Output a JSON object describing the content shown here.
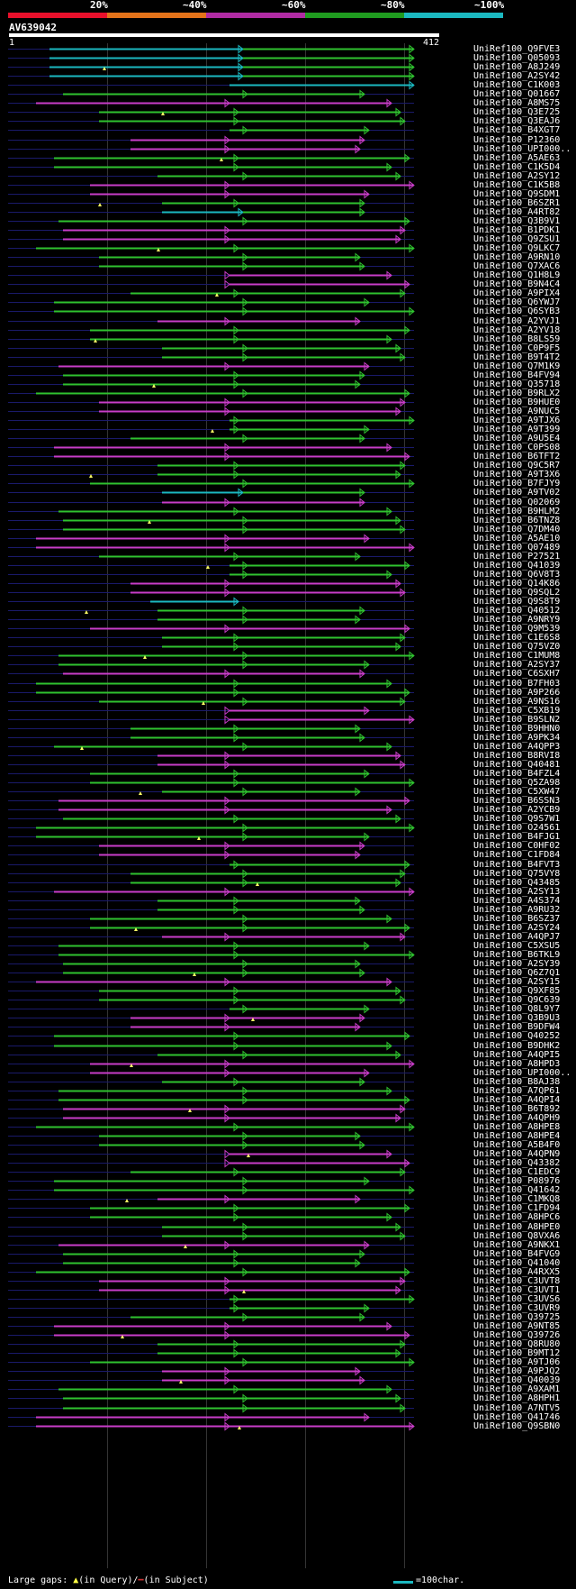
{
  "header": {
    "percent_labels": [
      "20%",
      "~40%",
      "~60%",
      "~80%",
      "~100%"
    ],
    "query_name": "AV639042",
    "query_start": "1",
    "query_end": "412",
    "colors": {
      "band1": "#e8102b",
      "band2": "#e4731a",
      "band3": "#b02ba3",
      "band4": "#1f9b1f",
      "band5": "#1bb8c0"
    }
  },
  "legend": {
    "large_gaps_label": "Large gaps: ",
    "query_marker": "▲",
    "query_text": "(in Query)/",
    "subject_text": "(in Subject)",
    "scale_label": "=100char."
  },
  "hits": [
    "UniRef100_Q9FVE3",
    "UniRef100_Q05093",
    "UniRef100_A8J249",
    "UniRef100_A2SY42",
    "UniRef100_C1K003",
    "UniRef100_Q01667",
    "UniRef100_A8MS75",
    "UniRef100_Q3E725",
    "UniRef100_Q3EAJ6",
    "UniRef100_B4XGT7",
    "UniRef100_P12360",
    "UniRef100_UPI000..",
    "UniRef100_A5AE63",
    "UniRef100_C1K5D4",
    "UniRef100_A2SY12",
    "UniRef100_C1K5B8",
    "UniRef100_Q9SDM1",
    "UniRef100_B6SZR1",
    "UniRef100_A4RT82",
    "UniRef100_Q3B9V1",
    "UniRef100_B1PDK1",
    "UniRef100_Q9ZSU1",
    "UniRef100_Q9LKC7",
    "UniRef100_A9RN10",
    "UniRef100_Q7XAC6",
    "UniRef100_Q1H8L9",
    "UniRef100_B9N4C4",
    "UniRef100_A9PIX4",
    "UniRef100_Q6YWJ7",
    "UniRef100_Q6SYB3",
    "UniRef100_A2YVJ1",
    "UniRef100_A2YV18",
    "UniRef100_B8LS59",
    "UniRef100_C0P9F5",
    "UniRef100_B9T4T2",
    "UniRef100_Q7M1K9",
    "UniRef100_B4FV94",
    "UniRef100_Q35718",
    "UniRef100_B9RLX2",
    "UniRef100_B9HUE0",
    "UniRef100_A9NUC5",
    "UniRef100_A9TJX6",
    "UniRef100_A9T399",
    "UniRef100_A9U5E4",
    "UniRef100_C0PS08",
    "UniRef100_B6TFT2",
    "UniRef100_Q9C5R7",
    "UniRef100_A9T3X6",
    "UniRef100_B7FJY9",
    "UniRef100_A9TV02",
    "UniRef100_Q02069",
    "UniRef100_B9HLM2",
    "UniRef100_B6TNZ8",
    "UniRef100_Q7DM40",
    "UniRef100_A5AE10",
    "UniRef100_Q07489",
    "UniRef100_P27521",
    "UniRef100_Q41039",
    "UniRef100_Q6V8T3",
    "UniRef100_Q14K86",
    "UniRef100_Q9SQL2",
    "UniRef100_Q9S8T9",
    "UniRef100_Q40512",
    "UniRef100_A9NRY9",
    "UniRef100_Q9M539",
    "UniRef100_C1E6S8",
    "UniRef100_Q75VZ0",
    "UniRef100_C1MUM8",
    "UniRef100_A2SY37",
    "UniRef100_C6SXH7",
    "UniRef100_B7FH03",
    "UniRef100_A9P266",
    "UniRef100_A9NS16",
    "UniRef100_C5XB19",
    "UniRef100_B9SLN2",
    "UniRef100_B9HHN0",
    "UniRef100_A9PK34",
    "UniRef100_A4QPP3",
    "UniRef100_B8RVI8",
    "UniRef100_Q40481",
    "UniRef100_B4FZL4",
    "UniRef100_Q5ZA98",
    "UniRef100_C5XW47",
    "UniRef100_B6SSN3",
    "UniRef100_A2YCB9",
    "UniRef100_Q9S7W1",
    "UniRef100_O24561",
    "UniRef100_B4FJG1",
    "UniRef100_C0HF02",
    "UniRef100_C1FD84",
    "UniRef100_B4FVT3",
    "UniRef100_Q75VY8",
    "UniRef100_Q43485",
    "UniRef100_A2SY13",
    "UniRef100_A4S374",
    "UniRef100_A9RU32",
    "UniRef100_B6SZ37",
    "UniRef100_A2SY24",
    "UniRef100_A4QPJ7",
    "UniRef100_C5XSU5",
    "UniRef100_B6TKL9",
    "UniRef100_A2SY39",
    "UniRef100_Q6Z7Q1",
    "UniRef100_A2SY15",
    "UniRef100_Q9XF85",
    "UniRef100_Q9C639",
    "UniRef100_Q8L9Y7",
    "UniRef100_Q3B9U3",
    "UniRef100_B9DFW4",
    "UniRef100_Q40252",
    "UniRef100_B9DHK2",
    "UniRef100_A4QPI5",
    "UniRef100_A8HPD3",
    "UniRef100_UPI000..",
    "UniRef100_B8AJ38",
    "UniRef100_A7QP61",
    "UniRef100_A4QPI4",
    "UniRef100_B6T892",
    "UniRef100_A4QPH9",
    "UniRef100_A8HPE8",
    "UniRef100_A8HPE4",
    "UniRef100_A5B4F0",
    "UniRef100_A4QPN9",
    "UniRef100_Q43382",
    "UniRef100_C1EDC9",
    "UniRef100_P08976",
    "UniRef100_Q41642",
    "UniRef100_C1MKQ8",
    "UniRef100_C1FD94",
    "UniRef100_A8HPC6",
    "UniRef100_A8HPE0",
    "UniRef100_Q8VXA6",
    "UniRef100_A9NKX1",
    "UniRef100_B4FVG9",
    "UniRef100_Q41040",
    "UniRef100_A4RXX5",
    "UniRef100_C3UVT8",
    "UniRef100_C3UVT1",
    "UniRef100_C3UVS6",
    "UniRef100_C3UVR9",
    "UniRef100_Q39725",
    "UniRef100_A9NT85",
    "UniRef100_Q39726",
    "UniRef100_Q8RU80",
    "UniRef100_B9MT12",
    "UniRef100_A9TJ06",
    "UniRef100_A9PJQ2",
    "UniRef100_Q40039",
    "UniRef100_A9XAM1",
    "UniRef100_A8HPH1",
    "UniRef100_A7NTV5",
    "UniRef100_Q41746",
    "UniRef100_Q9SBN0"
  ]
}
